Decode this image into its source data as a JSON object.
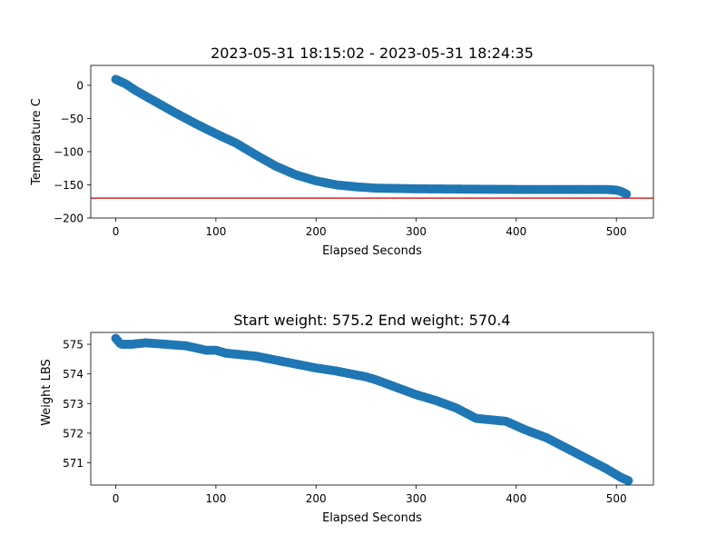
{
  "chart_data": [
    {
      "type": "scatter",
      "title": "2023-05-31 18:15:02 - 2023-05-31 18:24:35",
      "xlabel": "Elapsed Seconds",
      "ylabel": "Temperature C",
      "xlim": [
        -25,
        537
      ],
      "ylim": [
        -200,
        30
      ],
      "xticks": [
        0,
        100,
        200,
        300,
        400,
        500
      ],
      "yticks": [
        0,
        -50,
        -100,
        -150,
        -200
      ],
      "xtick_labels": [
        "0",
        "100",
        "200",
        "300",
        "400",
        "500"
      ],
      "ytick_labels": [
        "0",
        "−50",
        "−100",
        "−150",
        "−200"
      ],
      "grid": false,
      "marker_color": "#1f77b4",
      "reference_line": {
        "y": -170,
        "color": "#d62728"
      },
      "keypoints": [
        [
          0,
          9
        ],
        [
          10,
          2
        ],
        [
          20,
          -8
        ],
        [
          40,
          -25
        ],
        [
          60,
          -42
        ],
        [
          80,
          -58
        ],
        [
          100,
          -73
        ],
        [
          120,
          -87
        ],
        [
          140,
          -105
        ],
        [
          160,
          -122
        ],
        [
          180,
          -135
        ],
        [
          200,
          -144
        ],
        [
          220,
          -150
        ],
        [
          240,
          -153
        ],
        [
          260,
          -155
        ],
        [
          300,
          -156
        ],
        [
          400,
          -157
        ],
        [
          490,
          -157
        ],
        [
          500,
          -158
        ],
        [
          505,
          -160
        ],
        [
          510,
          -164
        ]
      ]
    },
    {
      "type": "scatter",
      "title": "Start weight: 575.2 End weight: 570.4",
      "xlabel": "Elapsed Seconds",
      "ylabel": "Weight LBS",
      "xlim": [
        -25,
        537
      ],
      "ylim": [
        570.25,
        575.4
      ],
      "xticks": [
        0,
        100,
        200,
        300,
        400,
        500
      ],
      "yticks": [
        575,
        574,
        573,
        572,
        571
      ],
      "xtick_labels": [
        "0",
        "100",
        "200",
        "300",
        "400",
        "500"
      ],
      "ytick_labels": [
        "575",
        "574",
        "573",
        "572",
        "571"
      ],
      "grid": false,
      "marker_color": "#1f77b4",
      "keypoints": [
        [
          0,
          575.2
        ],
        [
          5,
          575.0
        ],
        [
          15,
          575.0
        ],
        [
          30,
          575.05
        ],
        [
          50,
          575.0
        ],
        [
          70,
          574.95
        ],
        [
          90,
          574.8
        ],
        [
          100,
          574.8
        ],
        [
          110,
          574.7
        ],
        [
          140,
          574.6
        ],
        [
          170,
          574.4
        ],
        [
          200,
          574.2
        ],
        [
          220,
          574.1
        ],
        [
          250,
          573.9
        ],
        [
          260,
          573.8
        ],
        [
          280,
          573.55
        ],
        [
          300,
          573.3
        ],
        [
          320,
          573.1
        ],
        [
          340,
          572.85
        ],
        [
          360,
          572.5
        ],
        [
          390,
          572.4
        ],
        [
          410,
          572.1
        ],
        [
          430,
          571.85
        ],
        [
          450,
          571.5
        ],
        [
          470,
          571.15
        ],
        [
          490,
          570.8
        ],
        [
          505,
          570.5
        ],
        [
          512,
          570.4
        ]
      ]
    }
  ]
}
